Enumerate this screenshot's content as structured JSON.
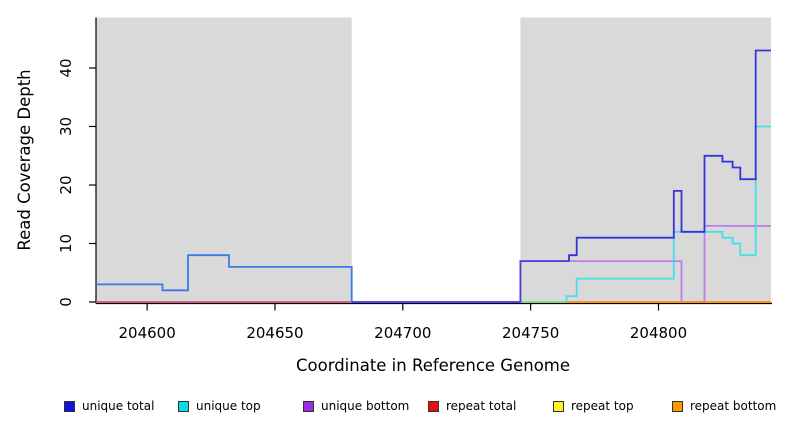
{
  "figure": {
    "xlabel": "Coordinate in Reference Genome",
    "ylabel": "Read Coverage Depth"
  },
  "legend": {
    "items": [
      {
        "label": "unique total",
        "color": "#1111e0"
      },
      {
        "label": "unique top",
        "color": "#00e0ea"
      },
      {
        "label": "unique bottom",
        "color": "#9a2fe0"
      },
      {
        "label": "repeat total",
        "color": "#e81010"
      },
      {
        "label": "repeat top",
        "color": "#fff41f"
      },
      {
        "label": "repeat bottom",
        "color": "#ff9900"
      }
    ]
  },
  "chart_data": {
    "type": "line",
    "subtype": "step-coverage",
    "title": "",
    "xlabel": "Coordinate in Reference Genome",
    "ylabel": "Read Coverage Depth",
    "xlim": [
      204580,
      204844
    ],
    "ylim": [
      0,
      45
    ],
    "x_ticks": [
      204600,
      204650,
      204700,
      204750,
      204800
    ],
    "y_ticks": [
      0,
      10,
      20,
      30,
      40
    ],
    "grid": false,
    "legend_position": "bottom",
    "shaded_regions": [
      {
        "from": 204580,
        "to": 204680,
        "color": "#d9d9d9"
      },
      {
        "from": 204746,
        "to": 204844,
        "color": "#d9d9d9"
      }
    ],
    "gap_region": {
      "from": 204680,
      "to": 204746,
      "color": "#ffffff"
    },
    "series": [
      {
        "name": "unique total",
        "steps": [
          [
            204580,
            3
          ],
          [
            204606,
            2
          ],
          [
            204616,
            8
          ],
          [
            204632,
            6
          ],
          [
            204680,
            0
          ],
          [
            204746,
            7
          ],
          [
            204765,
            8
          ],
          [
            204768,
            11
          ],
          [
            204806,
            19
          ],
          [
            204809,
            12
          ],
          [
            204818,
            25
          ],
          [
            204825,
            24
          ],
          [
            204829,
            23
          ],
          [
            204832,
            21
          ],
          [
            204838,
            43
          ],
          [
            204844,
            43
          ]
        ]
      },
      {
        "name": "unique top",
        "steps": [
          [
            204580,
            3
          ],
          [
            204606,
            2
          ],
          [
            204616,
            8
          ],
          [
            204632,
            6
          ],
          [
            204680,
            0
          ],
          [
            204764,
            1
          ],
          [
            204768,
            4
          ],
          [
            204806,
            12
          ],
          [
            204825,
            11
          ],
          [
            204829,
            10
          ],
          [
            204832,
            8
          ],
          [
            204838,
            30
          ],
          [
            204844,
            30
          ]
        ]
      },
      {
        "name": "unique bottom",
        "steps": [
          [
            204580,
            0
          ],
          [
            204746,
            7
          ],
          [
            204809,
            0
          ],
          [
            204818,
            13
          ],
          [
            204844,
            13
          ]
        ]
      },
      {
        "name": "repeat total",
        "steps": [
          [
            204580,
            0
          ],
          [
            204844,
            0
          ]
        ]
      },
      {
        "name": "repeat top",
        "steps": [
          [
            204580,
            0
          ],
          [
            204844,
            0
          ]
        ]
      },
      {
        "name": "repeat bottom",
        "steps": [
          [
            204580,
            0
          ],
          [
            204844,
            0
          ]
        ]
      }
    ],
    "render_lines": [
      {
        "name": "repeat-total-baseline",
        "color": "#d1517c",
        "points": [
          [
            204580,
            0
          ],
          [
            204680,
            0
          ]
        ]
      },
      {
        "name": "unique-bottom-line",
        "color": "#bd7de5",
        "points": [
          [
            204680,
            0
          ],
          [
            204746,
            0
          ],
          [
            204746,
            7
          ],
          [
            204809,
            7
          ],
          [
            204809,
            0
          ],
          [
            204818,
            0
          ],
          [
            204818,
            13
          ],
          [
            204844,
            13
          ]
        ]
      },
      {
        "name": "baseline-green-blend",
        "color": "#7fd87f",
        "points": [
          [
            204746,
            0
          ],
          [
            204764,
            0
          ]
        ]
      },
      {
        "name": "repeat-bottom-line",
        "color": "#ff9100",
        "points": [
          [
            204764,
            0
          ],
          [
            204844,
            0
          ]
        ]
      },
      {
        "name": "unique-top-line",
        "color": "#45dfe6",
        "points": [
          [
            204764,
            0
          ],
          [
            204764,
            1
          ],
          [
            204768,
            1
          ],
          [
            204768,
            4
          ],
          [
            204806,
            4
          ],
          [
            204806,
            12
          ],
          [
            204825,
            12
          ],
          [
            204825,
            11
          ],
          [
            204829,
            11
          ],
          [
            204829,
            10
          ],
          [
            204832,
            10
          ],
          [
            204832,
            8
          ],
          [
            204838,
            8
          ],
          [
            204838,
            30
          ],
          [
            204844,
            30
          ]
        ]
      },
      {
        "name": "unique-total-left-blend",
        "color": "#3c79e8",
        "points": [
          [
            204580,
            3
          ],
          [
            204606,
            3
          ],
          [
            204606,
            2
          ],
          [
            204616,
            2
          ],
          [
            204616,
            8
          ],
          [
            204632,
            8
          ],
          [
            204632,
            6
          ],
          [
            204680,
            6
          ],
          [
            204680,
            0
          ]
        ]
      },
      {
        "name": "unique-total-mid-blend",
        "color": "#4c39e0",
        "points": [
          [
            204680,
            0
          ],
          [
            204746,
            0
          ],
          [
            204746,
            7
          ],
          [
            204765,
            7
          ]
        ]
      },
      {
        "name": "unique-total-right",
        "color": "#3434d8",
        "points": [
          [
            204765,
            7
          ],
          [
            204765,
            8
          ],
          [
            204768,
            8
          ],
          [
            204768,
            11
          ],
          [
            204806,
            11
          ],
          [
            204806,
            19
          ],
          [
            204809,
            19
          ],
          [
            204809,
            12
          ],
          [
            204818,
            12
          ],
          [
            204818,
            25
          ],
          [
            204825,
            25
          ],
          [
            204825,
            24
          ],
          [
            204829,
            24
          ],
          [
            204829,
            23
          ],
          [
            204832,
            23
          ],
          [
            204832,
            21
          ],
          [
            204838,
            21
          ],
          [
            204838,
            43
          ],
          [
            204844,
            43
          ]
        ]
      }
    ]
  }
}
